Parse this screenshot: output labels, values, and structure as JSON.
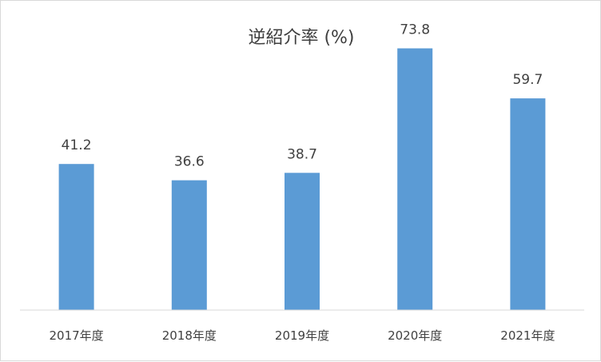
{
  "chart_data": {
    "type": "bar",
    "title": "逆紹介率 (%)",
    "categories": [
      "2017年度",
      "2018年度",
      "2019年度",
      "2020年度",
      "2021年度"
    ],
    "values": [
      41.2,
      36.6,
      38.7,
      73.8,
      59.7
    ],
    "ylim": [
      0,
      80
    ],
    "grid": false,
    "legend": "none",
    "colors": {
      "bar": "#5b9bd5",
      "axis": "#d9d9d9",
      "text": "#404040"
    }
  }
}
